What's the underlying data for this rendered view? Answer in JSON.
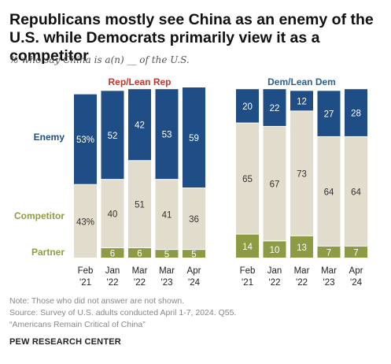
{
  "title": "Republicans mostly see China as an enemy of the U.S. while Democrats primarily view it as a competitor",
  "subtitle": "% who say China is a(n) __ of the U.S.",
  "colors": {
    "enemy": "#1f4d86",
    "competitor": "#e1dccb",
    "partner": "#8d9b45",
    "rep_label": "#c0392b",
    "dem_label": "#2e5f8f",
    "enemy_label": "#1f4d86",
    "competitor_label": "#8d9b45",
    "partner_label": "#8d9b45"
  },
  "chart_data": {
    "type": "bar",
    "stacked": true,
    "legend": {
      "enemy": "Enemy",
      "competitor": "Competitor",
      "partner": "Partner"
    },
    "groups": [
      {
        "name": "Rep/Lean Rep",
        "categories": [
          [
            "Feb",
            "'21"
          ],
          [
            "Jan",
            "'22"
          ],
          [
            "Mar",
            "'22"
          ],
          [
            "Mar",
            "'23"
          ],
          [
            "Apr",
            "'24"
          ]
        ],
        "series": [
          {
            "key": "partner",
            "name": "Partner",
            "values": [
              null,
              6,
              6,
              5,
              5
            ],
            "labels": [
              "",
              "6",
              "6",
              "5",
              "5"
            ]
          },
          {
            "key": "competitor",
            "name": "Competitor",
            "values": [
              43,
              40,
              51,
              41,
              36
            ],
            "labels": [
              "43%",
              "40",
              "51",
              "41",
              "36"
            ]
          },
          {
            "key": "enemy",
            "name": "Enemy",
            "values": [
              53,
              52,
              42,
              53,
              59
            ],
            "labels": [
              "53%",
              "52",
              "42",
              "53",
              "59"
            ]
          }
        ]
      },
      {
        "name": "Dem/Lean Dem",
        "categories": [
          [
            "Feb",
            "'21"
          ],
          [
            "Jan",
            "'22"
          ],
          [
            "Mar",
            "'22"
          ],
          [
            "Mar",
            "'23"
          ],
          [
            "Apr",
            "'24"
          ]
        ],
        "series": [
          {
            "key": "partner",
            "name": "Partner",
            "values": [
              14,
              10,
              13,
              7,
              7
            ],
            "labels": [
              "14",
              "10",
              "13",
              "7",
              "7"
            ]
          },
          {
            "key": "competitor",
            "name": "Competitor",
            "values": [
              65,
              67,
              73,
              64,
              64
            ],
            "labels": [
              "65",
              "67",
              "73",
              "64",
              "64"
            ]
          },
          {
            "key": "enemy",
            "name": "Enemy",
            "values": [
              20,
              22,
              12,
              27,
              28
            ],
            "labels": [
              "20",
              "22",
              "12",
              "27",
              "28"
            ]
          }
        ]
      }
    ]
  },
  "notes": [
    "Note: Those who did not answer are not shown.",
    "Source: Survey of U.S. adults conducted April 1-7, 2024. Q55.",
    "“Americans Remain Critical of China”"
  ],
  "brand": "PEW RESEARCH CENTER"
}
